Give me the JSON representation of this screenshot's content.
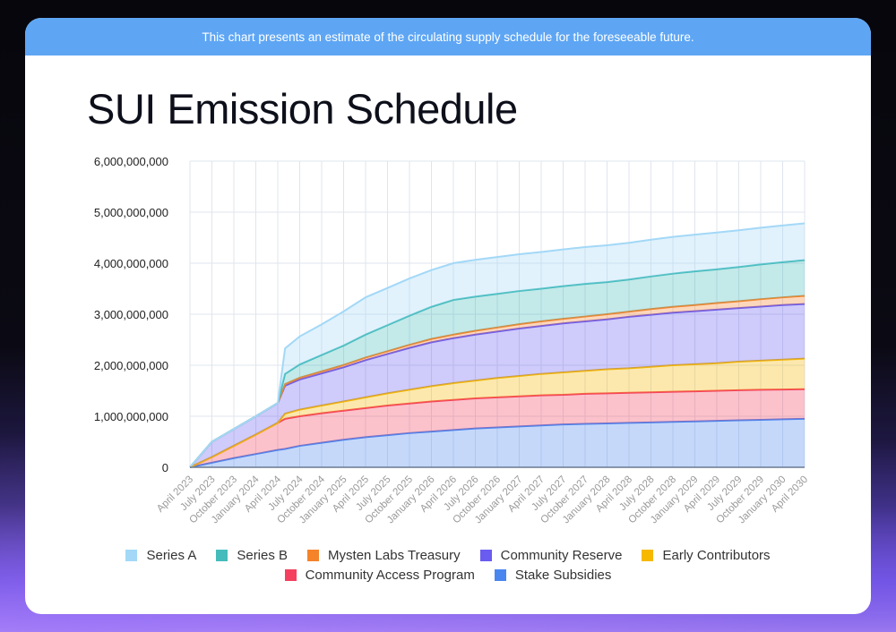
{
  "banner": {
    "text": "This chart presents an estimate of the circulating supply schedule for the foreseeable future."
  },
  "title": "SUI Emission Schedule",
  "chart_data": {
    "type": "area",
    "stacked": true,
    "title": "SUI Emission Schedule",
    "xlabel": "",
    "ylabel": "",
    "ylim": [
      0,
      6000000000
    ],
    "y_ticks": [
      0,
      1000000000,
      2000000000,
      3000000000,
      4000000000,
      5000000000,
      6000000000
    ],
    "y_tick_labels": [
      "0",
      "1,000,000,000",
      "2,000,000,000",
      "3,000,000,000",
      "4,000,000,000",
      "5,000,000,000",
      "6,000,000,000"
    ],
    "x_tick_labels": [
      "April 2023",
      "July 2023",
      "October 2023",
      "January 2024",
      "April 2024",
      "July 2024",
      "October 2024",
      "January 2025",
      "April 2025",
      "July 2025",
      "October 2025",
      "January 2026",
      "April 2026",
      "July 2026",
      "October 2026",
      "January 2027",
      "April 2027",
      "July 2027",
      "October 2027",
      "January 2028",
      "April 2028",
      "July 2028",
      "October 2028",
      "January 2029",
      "April 2029",
      "July 2029",
      "October 2029",
      "January 2030",
      "April 2030"
    ],
    "grid": true,
    "legend_position": "bottom",
    "x": [
      "2023-04",
      "2023-07",
      "2023-10",
      "2024-01",
      "2024-04",
      "2024-05",
      "2024-07",
      "2024-10",
      "2025-01",
      "2025-04",
      "2025-07",
      "2025-10",
      "2026-01",
      "2026-04",
      "2026-07",
      "2026-10",
      "2027-01",
      "2027-04",
      "2027-07",
      "2027-10",
      "2028-01",
      "2028-04",
      "2028-07",
      "2028-10",
      "2029-01",
      "2029-04",
      "2029-07",
      "2029-10",
      "2030-01",
      "2030-04"
    ],
    "series": [
      {
        "name": "Stake Subsidies",
        "color": "#4a86f0",
        "values": [
          0,
          90000000.0,
          180000000.0,
          260000000.0,
          340000000.0,
          360000000.0,
          420000000.0,
          480000000.0,
          540000000.0,
          590000000.0,
          630000000.0,
          670000000.0,
          700000000.0,
          730000000.0,
          760000000.0,
          780000000.0,
          800000000.0,
          820000000.0,
          840000000.0,
          850000000.0,
          860000000.0,
          870000000.0,
          880000000.0,
          890000000.0,
          900000000.0,
          910000000.0,
          920000000.0,
          930000000.0,
          940000000.0,
          950000000.0
        ]
      },
      {
        "name": "Community Access Program",
        "color": "#f4405e",
        "values": [
          0,
          110000000.0,
          240000000.0,
          380000000.0,
          530000000.0,
          590000000.0,
          580000000.0,
          580000000.0,
          570000000.0,
          570000000.0,
          580000000.0,
          580000000.0,
          590000000.0,
          590000000.0,
          590000000.0,
          590000000.0,
          590000000.0,
          590000000.0,
          580000000.0,
          590000000.0,
          590000000.0,
          590000000.0,
          590000000.0,
          590000000.0,
          590000000.0,
          590000000.0,
          590000000.0,
          590000000.0,
          585000000.0,
          580000000.0
        ]
      },
      {
        "name": "Early Contributors",
        "color": "#f6b800",
        "values": [
          0,
          0,
          0,
          0,
          0,
          100000000.0,
          130000000.0,
          150000000.0,
          180000000.0,
          210000000.0,
          240000000.0,
          270000000.0,
          300000000.0,
          330000000.0,
          350000000.0,
          380000000.0,
          400000000.0,
          420000000.0,
          440000000.0,
          450000000.0,
          470000000.0,
          480000000.0,
          500000000.0,
          520000000.0,
          530000000.0,
          540000000.0,
          560000000.0,
          570000000.0,
          585000000.0,
          600000000.0
        ]
      },
      {
        "name": "Community Reserve",
        "color": "#6a5cf0",
        "values": [
          0,
          300000000.0,
          330000000.0,
          360000000.0,
          390000000.0,
          550000000.0,
          590000000.0,
          630000000.0,
          670000000.0,
          730000000.0,
          770000000.0,
          820000000.0,
          860000000.0,
          880000000.0,
          900000000.0,
          910000000.0,
          930000000.0,
          940000000.0,
          960000000.0,
          970000000.0,
          980000000.0,
          1010000000.0,
          1020000000.0,
          1030000000.0,
          1040000000.0,
          1050000000.0,
          1050000000.0,
          1060000000.0,
          1070000000.0,
          1070000000.0
        ]
      },
      {
        "name": "Mysten Labs Treasury",
        "color": "#f5832a",
        "values": [
          0,
          0,
          0,
          0,
          0,
          30000000.0,
          35000000.0,
          40000000.0,
          45000000.0,
          50000000.0,
          55000000.0,
          60000000.0,
          65000000.0,
          70000000.0,
          75000000.0,
          80000000.0,
          85000000.0,
          90000000.0,
          90000000.0,
          95000000.0,
          100000000.0,
          100000000.0,
          110000000.0,
          115000000.0,
          120000000.0,
          130000000.0,
          135000000.0,
          145000000.0,
          150000000.0,
          160000000.0
        ]
      },
      {
        "name": "Series B",
        "color": "#45bcbc",
        "values": [
          0,
          0,
          0,
          0,
          0,
          200000000.0,
          260000000.0,
          320000000.0,
          380000000.0,
          450000000.0,
          510000000.0,
          570000000.0,
          630000000.0,
          680000000.0,
          670000000.0,
          660000000.0,
          650000000.0,
          640000000.0,
          640000000.0,
          640000000.0,
          630000000.0,
          630000000.0,
          640000000.0,
          650000000.0,
          660000000.0,
          660000000.0,
          670000000.0,
          680000000.0,
          690000000.0,
          700000000.0
        ]
      },
      {
        "name": "Series A",
        "color": "#a3d8f7",
        "values": [
          0,
          0,
          0,
          0,
          0,
          500000000.0,
          550000000.0,
          600000000.0,
          670000000.0,
          730000000.0,
          730000000.0,
          730000000.0,
          720000000.0,
          720000000.0,
          720000000.0,
          720000000.0,
          720000000.0,
          720000000.0,
          720000000.0,
          720000000.0,
          720000000.0,
          720000000.0,
          720000000.0,
          720000000.0,
          720000000.0,
          720000000.0,
          720000000.0,
          720000000.0,
          720000000.0,
          720000000.0
        ]
      }
    ],
    "legend_order": [
      "Series A",
      "Series B",
      "Mysten Labs Treasury",
      "Community Reserve",
      "Early Contributors",
      "Community Access Program",
      "Stake Subsidies"
    ]
  }
}
